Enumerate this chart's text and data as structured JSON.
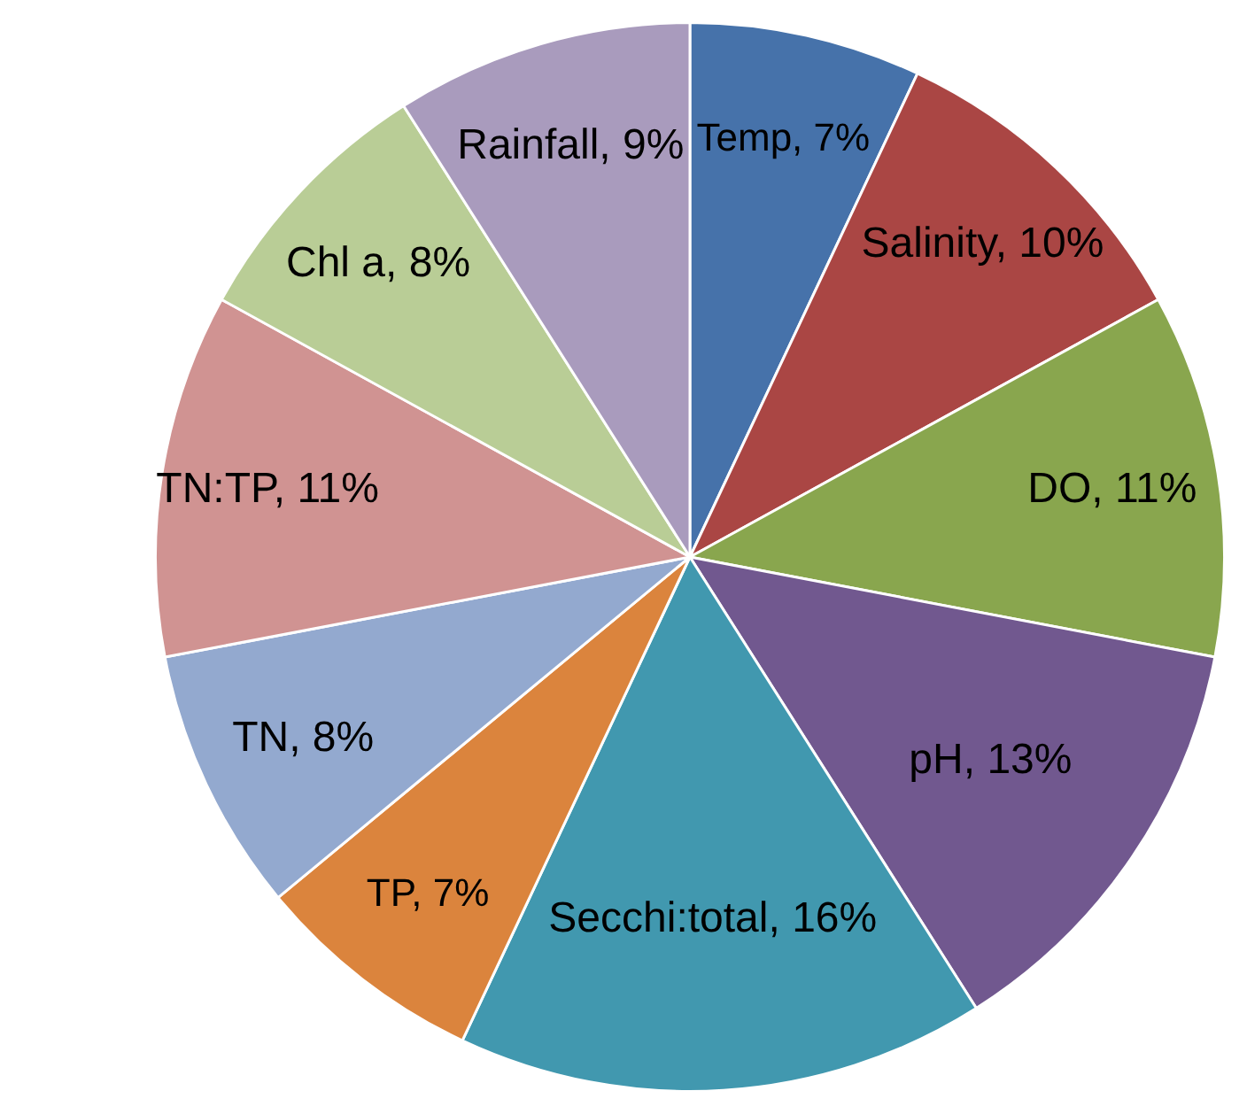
{
  "chart_data": {
    "type": "pie",
    "categories": [
      "Temp",
      "Salinity",
      "DO",
      "pH",
      "Secchi:total",
      "TP",
      "TN",
      "TN:TP",
      "Chl a",
      "Rainfall"
    ],
    "values": [
      7,
      10,
      11,
      13,
      16,
      7,
      8,
      11,
      8,
      9
    ],
    "value_labels": [
      "7%",
      "10%",
      "11%",
      "13%",
      "16%",
      "7%",
      "8%",
      "11%",
      "8%",
      "9%"
    ],
    "colors": [
      "#4672aa",
      "#aa4644",
      "#89a64e",
      "#71588f",
      "#4198af",
      "#db843d",
      "#93a9cf",
      "#d09392",
      "#b9cd96",
      "#a99bbd"
    ],
    "legend": false
  }
}
